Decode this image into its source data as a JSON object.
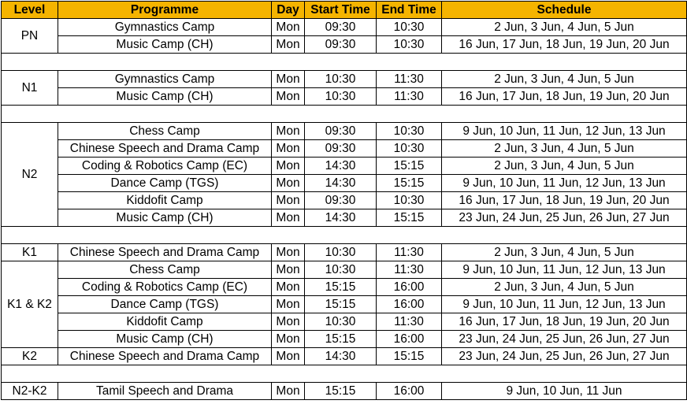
{
  "headers": {
    "level": "Level",
    "programme": "Programme",
    "day": "Day",
    "start": "Start Time",
    "end": "End Time",
    "schedule": "Schedule"
  },
  "rows": [
    {
      "level": "PN",
      "programme": "Gymnastics Camp",
      "day": "Mon",
      "start": "09:30",
      "end": "10:30",
      "schedule": "2 Jun, 3 Jun, 4 Jun, 5 Jun"
    },
    {
      "programme": "Music Camp (CH)",
      "day": "Mon",
      "start": "09:30",
      "end": "10:30",
      "schedule": "16 Jun, 17 Jun, 18 Jun, 19 Jun, 20 Jun"
    },
    {
      "level": "N1",
      "programme": "Gymnastics Camp",
      "day": "Mon",
      "start": "10:30",
      "end": "11:30",
      "schedule": "2 Jun, 3 Jun, 4 Jun, 5 Jun"
    },
    {
      "programme": "Music Camp (CH)",
      "day": "Mon",
      "start": "10:30",
      "end": "11:30",
      "schedule": "16 Jun, 17 Jun, 18 Jun, 19 Jun, 20 Jun"
    },
    {
      "level": "N2",
      "programme": "Chess Camp",
      "day": "Mon",
      "start": "09:30",
      "end": "10:30",
      "schedule": "9 Jun, 10 Jun, 11 Jun, 12 Jun, 13 Jun"
    },
    {
      "programme": "Chinese Speech and Drama Camp",
      "day": "Mon",
      "start": "09:30",
      "end": "10:30",
      "schedule": "2 Jun, 3 Jun, 4 Jun, 5 Jun"
    },
    {
      "programme": "Coding & Robotics Camp (EC)",
      "day": "Mon",
      "start": "14:30",
      "end": "15:15",
      "schedule": "2 Jun, 3 Jun, 4 Jun, 5 Jun"
    },
    {
      "programme": "Dance Camp (TGS)",
      "day": "Mon",
      "start": "14:30",
      "end": "15:15",
      "schedule": "9 Jun, 10 Jun, 11 Jun, 12 Jun, 13 Jun"
    },
    {
      "programme": "Kiddofit Camp",
      "day": "Mon",
      "start": "09:30",
      "end": "10:30",
      "schedule": "16 Jun, 17 Jun, 18 Jun, 19 Jun, 20 Jun"
    },
    {
      "programme": "Music Camp (CH)",
      "day": "Mon",
      "start": "14:30",
      "end": "15:15",
      "schedule": "23 Jun, 24 Jun, 25 Jun, 26 Jun, 27 Jun"
    },
    {
      "level": "K1",
      "programme": "Chinese Speech and Drama Camp",
      "day": "Mon",
      "start": "10:30",
      "end": "11:30",
      "schedule": "2 Jun, 3 Jun, 4 Jun, 5 Jun"
    },
    {
      "level": "K1 & K2",
      "programme": "Chess Camp",
      "day": "Mon",
      "start": "10:30",
      "end": "11:30",
      "schedule": "9 Jun, 10 Jun, 11 Jun, 12 Jun, 13 Jun"
    },
    {
      "programme": "Coding & Robotics Camp (EC)",
      "day": "Mon",
      "start": "15:15",
      "end": "16:00",
      "schedule": "2 Jun, 3 Jun, 4 Jun, 5 Jun"
    },
    {
      "programme": "Dance Camp (TGS)",
      "day": "Mon",
      "start": "15:15",
      "end": "16:00",
      "schedule": "9 Jun, 10 Jun, 11 Jun, 12 Jun, 13 Jun"
    },
    {
      "programme": "Kiddofit Camp",
      "day": "Mon",
      "start": "10:30",
      "end": "11:30",
      "schedule": "16 Jun, 17 Jun, 18 Jun, 19 Jun, 20 Jun"
    },
    {
      "programme": "Music Camp (CH)",
      "day": "Mon",
      "start": "15:15",
      "end": "16:00",
      "schedule": "23 Jun, 24 Jun, 25 Jun, 26 Jun, 27 Jun"
    },
    {
      "level": "K2",
      "programme": "Chinese Speech and Drama Camp",
      "day": "Mon",
      "start": "14:30",
      "end": "15:15",
      "schedule": "23 Jun, 24 Jun, 25 Jun, 26 Jun, 27 Jun"
    },
    {
      "level": "N2-K2",
      "programme": "Tamil Speech and Drama",
      "day": "Mon",
      "start": "15:15",
      "end": "16:00",
      "schedule": "9 Jun, 10 Jun, 11 Jun"
    }
  ]
}
